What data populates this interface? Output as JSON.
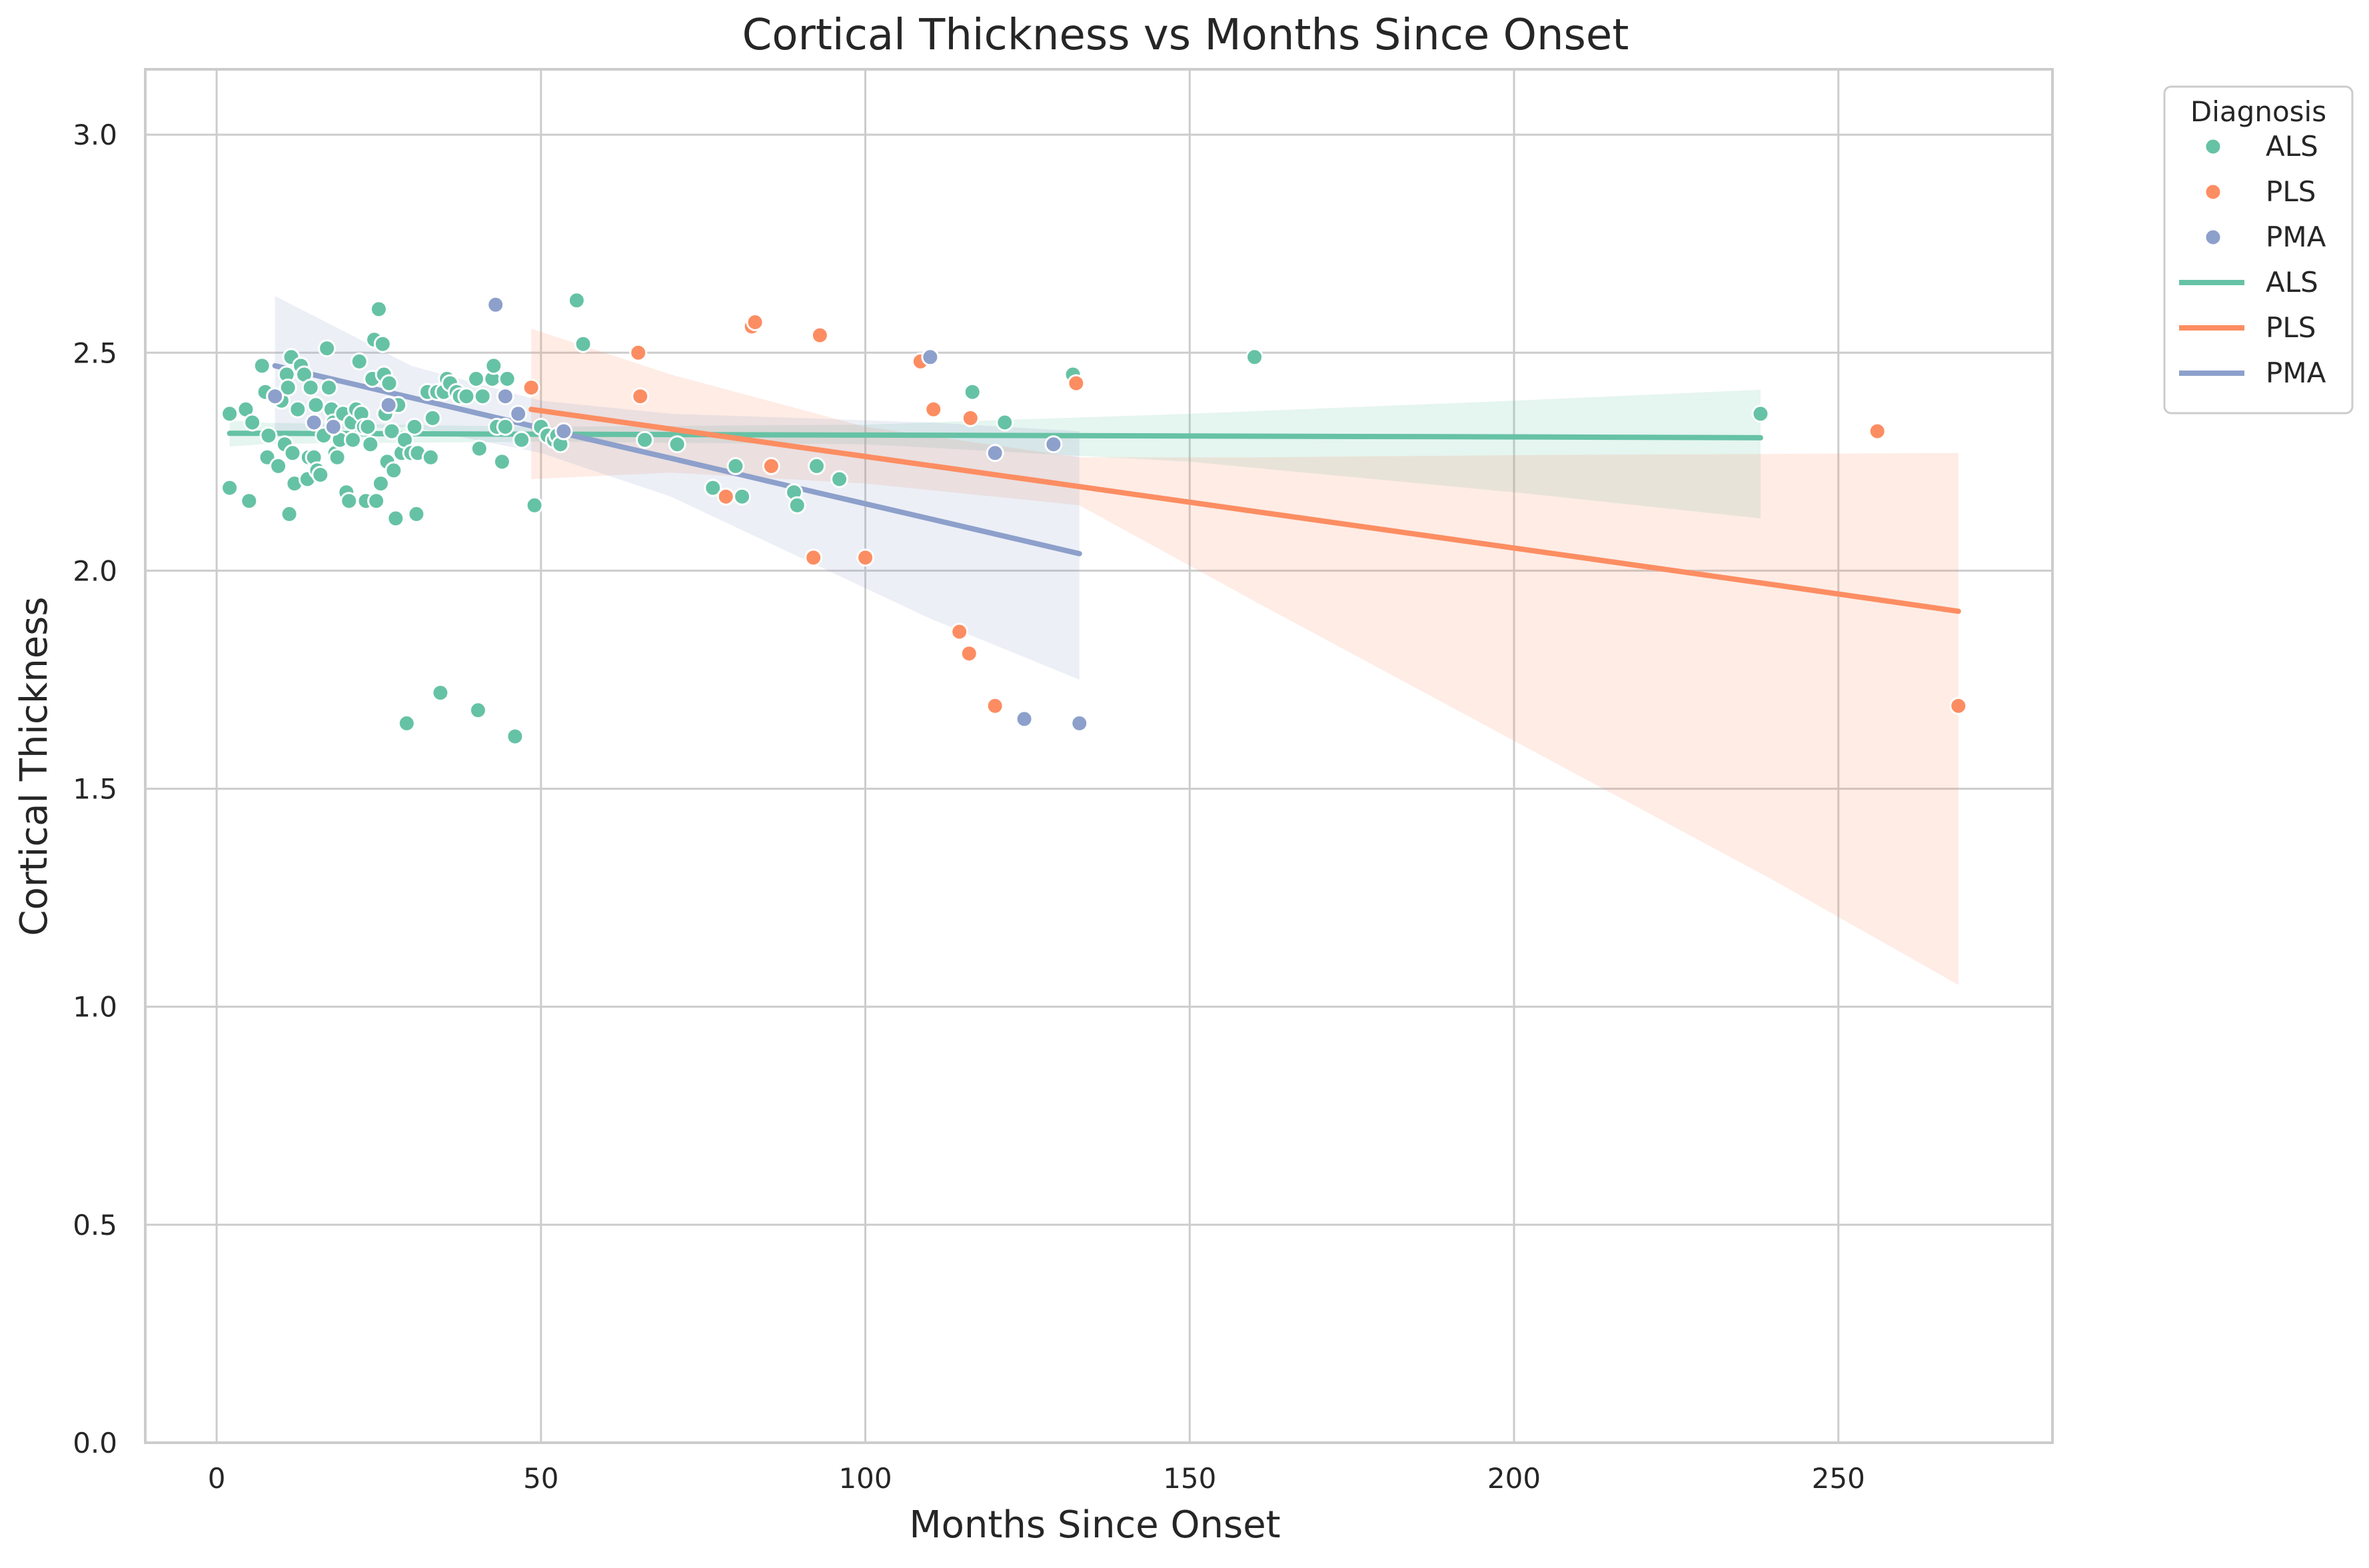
{
  "chart_data": {
    "type": "scatter",
    "title": "Cortical Thickness vs Months Since Onset",
    "xlabel": "Months Since Onset",
    "ylabel": "Cortical Thickness",
    "xlim": [
      -11,
      283
    ],
    "ylim": [
      0,
      3.15
    ],
    "xticks": [
      0,
      50,
      100,
      150,
      200,
      250
    ],
    "yticks": [
      0.0,
      0.5,
      1.0,
      1.5,
      2.0,
      2.5,
      3.0
    ],
    "xtick_labels": [
      "0",
      "50",
      "100",
      "150",
      "200",
      "250"
    ],
    "ytick_labels": [
      "0.0",
      "0.5",
      "1.0",
      "1.5",
      "2.0",
      "2.5",
      "3.0"
    ],
    "grid": true,
    "legend": {
      "title": "Diagnosis",
      "placement": "outside-top-right",
      "point_entries": [
        "ALS",
        "PLS",
        "PMA"
      ],
      "line_entries": [
        "ALS",
        "PLS",
        "PMA"
      ]
    },
    "colors": {
      "ALS": "#66c2a5",
      "PLS": "#fc8d62",
      "PMA": "#8da0cb"
    },
    "series": [
      {
        "name": "ALS",
        "points": [
          [
            2,
            2.36
          ],
          [
            2,
            2.19
          ],
          [
            4.5,
            2.37
          ],
          [
            5,
            2.16
          ],
          [
            5.5,
            2.34
          ],
          [
            7,
            2.47
          ],
          [
            7.5,
            2.41
          ],
          [
            7.8,
            2.26
          ],
          [
            8,
            2.31
          ],
          [
            9,
            2.4
          ],
          [
            9.5,
            2.24
          ],
          [
            10,
            2.39
          ],
          [
            10.5,
            2.29
          ],
          [
            10.8,
            2.45
          ],
          [
            11,
            2.42
          ],
          [
            11.2,
            2.13
          ],
          [
            11.5,
            2.49
          ],
          [
            11.7,
            2.27
          ],
          [
            12,
            2.2
          ],
          [
            12.5,
            2.37
          ],
          [
            13,
            2.47
          ],
          [
            13.5,
            2.45
          ],
          [
            14,
            2.21
          ],
          [
            14.2,
            2.26
          ],
          [
            14.5,
            2.42
          ],
          [
            15,
            2.26
          ],
          [
            15.3,
            2.38
          ],
          [
            15.5,
            2.23
          ],
          [
            16,
            2.22
          ],
          [
            16.5,
            2.31
          ],
          [
            17,
            2.51
          ],
          [
            17.3,
            2.42
          ],
          [
            17.7,
            2.37
          ],
          [
            18,
            2.34
          ],
          [
            18.3,
            2.27
          ],
          [
            18.6,
            2.26
          ],
          [
            19,
            2.3
          ],
          [
            19.5,
            2.36
          ],
          [
            20,
            2.18
          ],
          [
            20.4,
            2.16
          ],
          [
            20.8,
            2.34
          ],
          [
            21,
            2.3
          ],
          [
            21.5,
            2.37
          ],
          [
            22,
            2.48
          ],
          [
            22.3,
            2.36
          ],
          [
            22.7,
            2.33
          ],
          [
            23,
            2.16
          ],
          [
            23.3,
            2.33
          ],
          [
            23.7,
            2.29
          ],
          [
            24,
            2.44
          ],
          [
            24.3,
            2.53
          ],
          [
            24.6,
            2.16
          ],
          [
            25,
            2.6
          ],
          [
            25.3,
            2.2
          ],
          [
            25.6,
            2.52
          ],
          [
            25.8,
            2.45
          ],
          [
            26,
            2.36
          ],
          [
            26.3,
            2.25
          ],
          [
            26.6,
            2.43
          ],
          [
            27,
            2.32
          ],
          [
            27.3,
            2.23
          ],
          [
            27.6,
            2.12
          ],
          [
            28,
            2.38
          ],
          [
            28.5,
            2.27
          ],
          [
            29,
            2.3
          ],
          [
            29.3,
            1.65
          ],
          [
            30,
            2.27
          ],
          [
            30.5,
            2.33
          ],
          [
            30.8,
            2.13
          ],
          [
            31,
            2.27
          ],
          [
            32.5,
            2.41
          ],
          [
            33,
            2.26
          ],
          [
            33.3,
            2.35
          ],
          [
            34,
            2.41
          ],
          [
            34.5,
            1.72
          ],
          [
            35,
            2.41
          ],
          [
            35.5,
            2.44
          ],
          [
            36,
            2.43
          ],
          [
            37,
            2.41
          ],
          [
            37.5,
            2.4
          ],
          [
            38.5,
            2.4
          ],
          [
            40,
            2.44
          ],
          [
            40.3,
            1.68
          ],
          [
            40.5,
            2.28
          ],
          [
            41,
            2.4
          ],
          [
            42.5,
            2.44
          ],
          [
            42.7,
            2.47
          ],
          [
            43.2,
            2.33
          ],
          [
            44,
            2.25
          ],
          [
            44.5,
            2.33
          ],
          [
            44.8,
            2.44
          ],
          [
            46,
            1.62
          ],
          [
            47,
            2.3
          ],
          [
            49,
            2.15
          ],
          [
            50,
            2.33
          ],
          [
            51,
            2.31
          ],
          [
            52,
            2.3
          ],
          [
            52.5,
            2.31
          ],
          [
            53,
            2.29
          ],
          [
            55.5,
            2.62
          ],
          [
            56.5,
            2.52
          ],
          [
            66,
            2.3
          ],
          [
            71,
            2.29
          ],
          [
            76.5,
            2.19
          ],
          [
            80,
            2.24
          ],
          [
            81,
            2.17
          ],
          [
            89,
            2.18
          ],
          [
            89.5,
            2.15
          ],
          [
            92.5,
            2.24
          ],
          [
            96,
            2.21
          ],
          [
            116.5,
            2.41
          ],
          [
            121.5,
            2.34
          ],
          [
            132,
            2.45
          ],
          [
            160,
            2.49
          ],
          [
            238,
            2.36
          ]
        ]
      },
      {
        "name": "PLS",
        "points": [
          [
            48.5,
            2.42
          ],
          [
            65,
            2.5
          ],
          [
            65.3,
            2.4
          ],
          [
            78.5,
            2.17
          ],
          [
            82.5,
            2.56
          ],
          [
            83,
            2.57
          ],
          [
            85.5,
            2.24
          ],
          [
            92,
            2.03
          ],
          [
            93,
            2.54
          ],
          [
            100,
            2.03
          ],
          [
            108.5,
            2.48
          ],
          [
            110.5,
            2.37
          ],
          [
            114.5,
            1.86
          ],
          [
            116,
            1.81
          ],
          [
            116.2,
            2.35
          ],
          [
            120,
            1.69
          ],
          [
            132.5,
            2.43
          ],
          [
            256,
            2.32
          ],
          [
            268.5,
            1.69
          ]
        ]
      },
      {
        "name": "PMA",
        "points": [
          [
            9,
            2.4
          ],
          [
            15,
            2.34
          ],
          [
            18,
            2.33
          ],
          [
            26.5,
            2.38
          ],
          [
            43,
            2.61
          ],
          [
            44.5,
            2.4
          ],
          [
            46.5,
            2.36
          ],
          [
            53.5,
            2.32
          ],
          [
            110,
            2.49
          ],
          [
            120,
            2.27
          ],
          [
            124.5,
            1.66
          ],
          [
            129,
            2.29
          ],
          [
            133,
            1.65
          ]
        ]
      }
    ],
    "regression": [
      {
        "name": "ALS",
        "x": [
          2,
          8,
          50,
          100,
          150,
          200,
          238
        ],
        "y": [
          2.315,
          2.315,
          2.313,
          2.311,
          2.309,
          2.307,
          2.305
        ],
        "ci_low": [
          2.285,
          2.291,
          2.296,
          2.29,
          2.25,
          2.18,
          2.12
        ],
        "ci_high": [
          2.345,
          2.339,
          2.33,
          2.335,
          2.36,
          2.39,
          2.415
        ]
      },
      {
        "name": "PLS",
        "x": [
          48.5,
          70,
          100,
          133,
          160,
          200,
          240,
          268.5
        ],
        "y": [
          2.37,
          2.325,
          2.262,
          2.193,
          2.136,
          2.052,
          1.968,
          1.907
        ],
        "ci_low": [
          2.21,
          2.225,
          2.2,
          2.15,
          1.93,
          1.61,
          1.29,
          1.05
        ],
        "ci_high": [
          2.555,
          2.45,
          2.33,
          2.26,
          2.26,
          2.265,
          2.268,
          2.27
        ]
      },
      {
        "name": "PMA",
        "x": [
          9,
          30,
          50,
          70,
          90,
          110,
          133
        ],
        "y": [
          2.47,
          2.397,
          2.327,
          2.258,
          2.188,
          2.119,
          2.039
        ],
        "ci_low": [
          2.32,
          2.33,
          2.27,
          2.17,
          2.03,
          1.89,
          1.75
        ],
        "ci_high": [
          2.63,
          2.47,
          2.39,
          2.36,
          2.35,
          2.34,
          2.32
        ]
      }
    ]
  }
}
